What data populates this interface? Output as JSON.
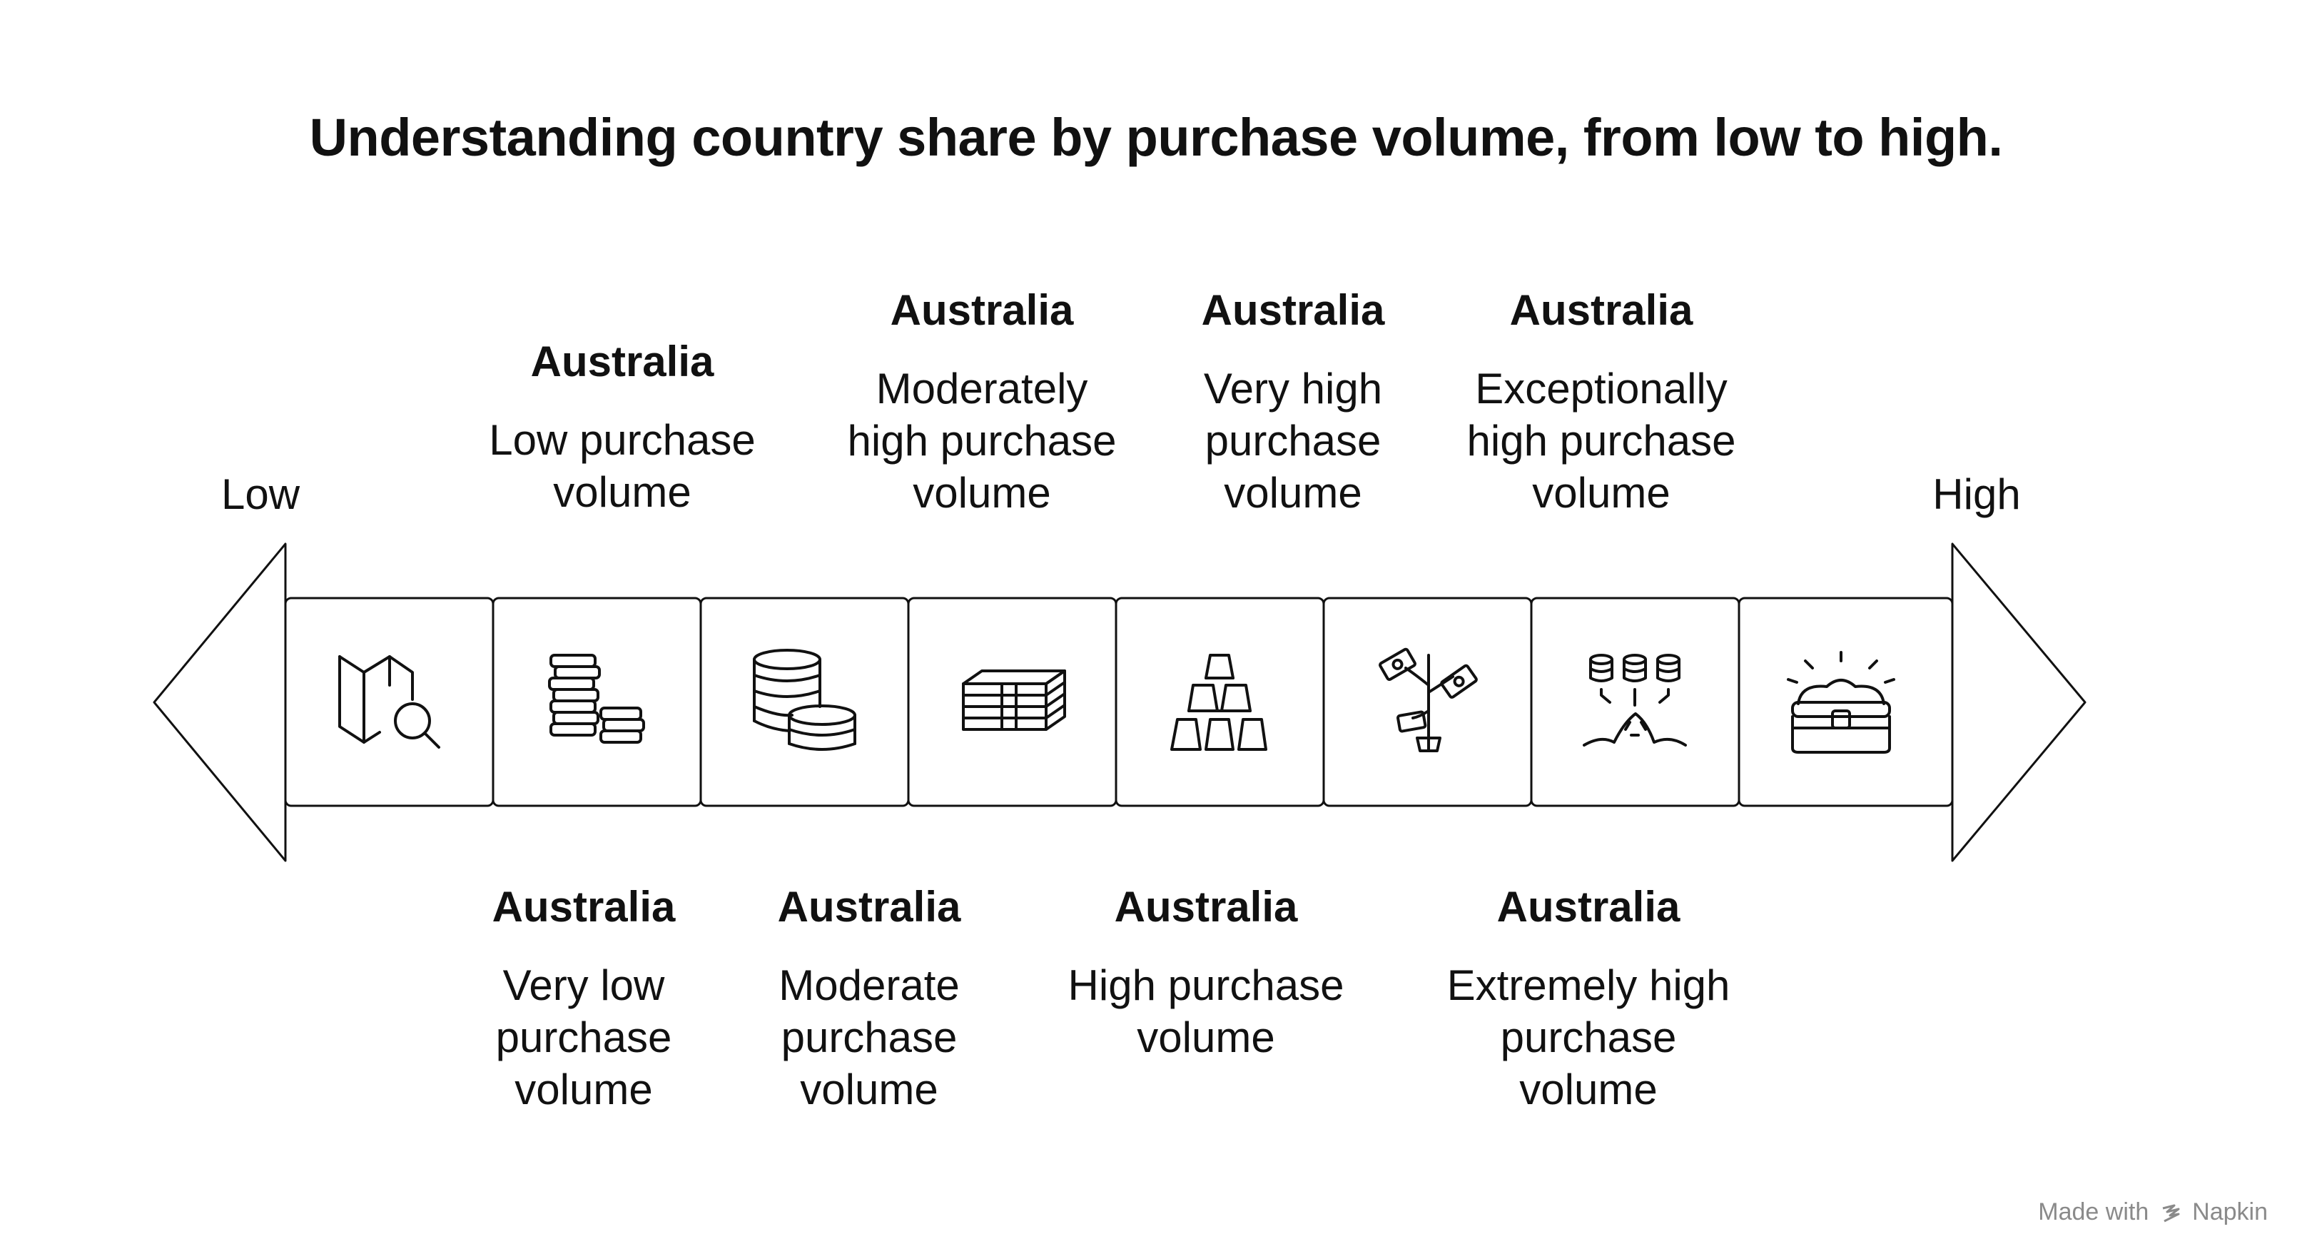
{
  "title": "Understanding country share by purchase volume, from low to high.",
  "axis": {
    "low_label": "Low",
    "high_label": "High"
  },
  "stages": [
    {
      "icon": "map-search-icon"
    },
    {
      "icon": "coin-stack-icon",
      "heading": "Australia",
      "description": "Low purchase volume",
      "position": "top"
    },
    {
      "icon": "coin-pile-icon",
      "heading": "Australia",
      "description": "Very low purchase volume",
      "position": "bottom"
    },
    {
      "icon": "cash-stack-icon",
      "heading": "Australia",
      "description": "Moderately high purchase volume",
      "position": "top"
    },
    {
      "icon": "gold-bars-icon",
      "heading": "Australia",
      "description": "Moderate purchase volume",
      "position": "bottom"
    },
    {
      "icon": "money-tree-icon",
      "heading": "Australia",
      "description": "Very high purchase volume",
      "position": "top"
    },
    {
      "icon": "coin-splash-icon",
      "heading": "Australia",
      "description": "High purchase volume",
      "position": "bottom"
    },
    {
      "icon": "treasure-chest-icon",
      "heading": "Australia",
      "description": "Exceptionally high purchase volume",
      "position": "top"
    }
  ],
  "extra_labels": [
    {
      "heading": "Australia",
      "description": "Extremely high purchase volume"
    }
  ],
  "footer": {
    "prefix": "Made with",
    "brand": "Napkin"
  }
}
